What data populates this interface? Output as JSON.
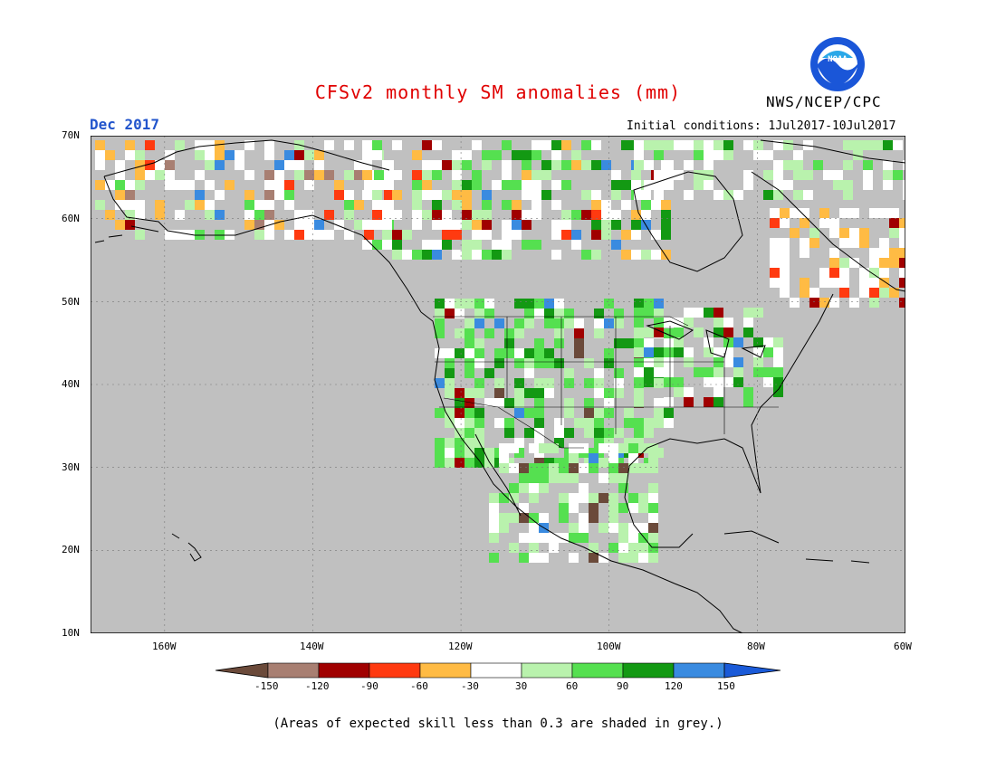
{
  "title": "CFSv2 monthly SM anomalies (mm)",
  "agency": "NWS/NCEP/CPC",
  "logo_text": "NOAA",
  "month": "Dec 2017",
  "initial_conditions": "Initial conditions:  1Jul2017-10Jul2017",
  "footnote": "(Areas of expected skill less than 0.3 are shaded in grey.)",
  "lat_labels": [
    "70N",
    "60N",
    "50N",
    "40N",
    "30N",
    "20N",
    "10N"
  ],
  "lon_labels": [
    "160W",
    "140W",
    "120W",
    "100W",
    "80W",
    "60W"
  ],
  "colorbar": {
    "labels": [
      "-150",
      "-120",
      "-90",
      "-60",
      "-30",
      "30",
      "60",
      "90",
      "120",
      "150"
    ],
    "colors": [
      "#6b4a3a",
      "#a87f72",
      "#a00000",
      "#ff3a10",
      "#ffbb44",
      "#ffffff",
      "#b9f2ad",
      "#55e050",
      "#139913",
      "#3a8be0",
      "#1a5ad8"
    ]
  },
  "colors": {
    "grey_skill": "#c0c0c0",
    "land_grid": "#888888"
  }
}
